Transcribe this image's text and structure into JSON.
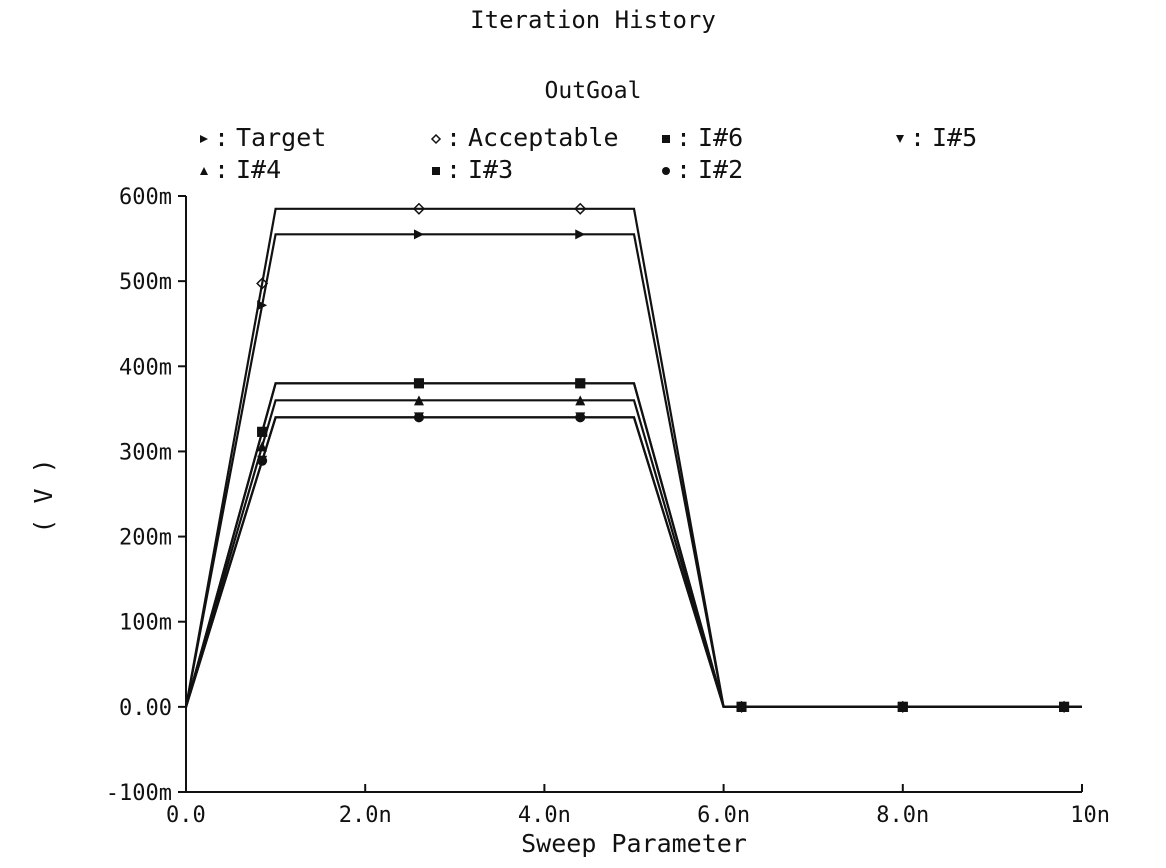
{
  "chart_data": {
    "type": "line",
    "title": "Iteration History",
    "subtitle": "OutGoal",
    "xlabel": "Sweep Parameter",
    "ylabel": "( V )",
    "xlim": [
      0,
      10
    ],
    "ylim": [
      -0.1,
      0.6
    ],
    "x_ticks": [
      0,
      2,
      4,
      6,
      8,
      10
    ],
    "x_tick_labels": [
      "0.0",
      "2.0n",
      "4.0n",
      "6.0n",
      "8.0n",
      "10n"
    ],
    "y_ticks": [
      -0.1,
      0,
      0.1,
      0.2,
      0.3,
      0.4,
      0.5,
      0.6
    ],
    "y_tick_labels": [
      "-100m",
      "0.00",
      "100m",
      "200m",
      "300m",
      "400m",
      "500m",
      "600m"
    ],
    "grid": false,
    "legend_position": "top",
    "x": [
      0,
      1,
      5,
      6,
      10
    ],
    "series": [
      {
        "name": "Target",
        "marker": "triangle-right",
        "values": [
          0,
          0.555,
          0.555,
          0,
          0
        ],
        "marker_x": [
          0.85,
          2.6,
          4.4,
          6.2,
          8.0,
          9.8
        ]
      },
      {
        "name": "Acceptable",
        "marker": "diamond",
        "values": [
          0,
          0.585,
          0.585,
          0,
          0
        ],
        "marker_x": [
          0.85,
          2.6,
          4.4,
          6.2,
          8.0,
          9.8
        ]
      },
      {
        "name": "I#6",
        "marker": "square",
        "values": [
          0,
          0.38,
          0.38,
          0,
          0
        ],
        "marker_x": [
          0.85,
          2.6,
          4.4,
          6.2,
          8.0,
          9.8
        ]
      },
      {
        "name": "I#5",
        "marker": "triangle-down",
        "values": [
          0,
          0.34,
          0.34,
          0,
          0
        ],
        "marker_x": [
          0.85,
          2.6,
          4.4,
          6.2,
          8.0,
          9.8
        ]
      },
      {
        "name": "I#4",
        "marker": "triangle-up",
        "values": [
          0,
          0.36,
          0.36,
          0,
          0
        ],
        "marker_x": [
          0.85,
          2.6,
          4.4,
          6.2,
          8.0,
          9.8
        ]
      },
      {
        "name": "I#3",
        "marker": "square",
        "values": [
          0,
          0.38,
          0.38,
          0,
          0
        ],
        "marker_x": [
          0.85,
          2.6,
          4.4,
          6.2,
          8.0,
          9.8
        ]
      },
      {
        "name": "I#2",
        "marker": "circle",
        "values": [
          0,
          0.34,
          0.34,
          0,
          0
        ],
        "marker_x": [
          0.85,
          2.6,
          4.4,
          6.2,
          8.0,
          9.8
        ]
      }
    ]
  }
}
